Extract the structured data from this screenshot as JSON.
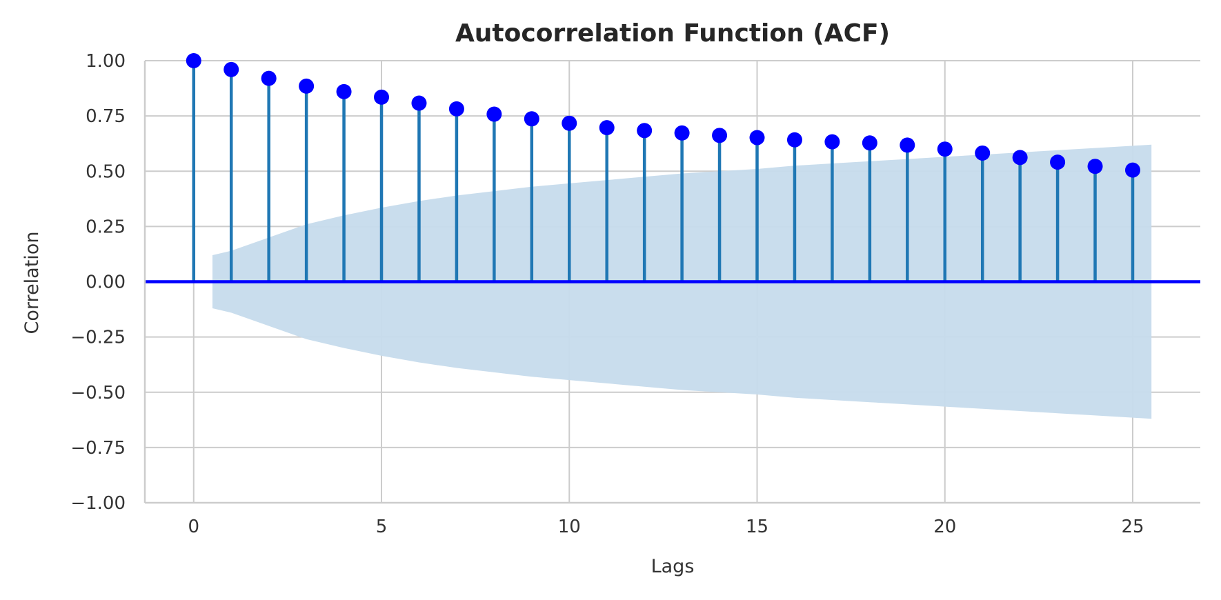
{
  "chart_data": {
    "type": "stem",
    "title": "Autocorrelation Function (ACF)",
    "xlabel": "Lags",
    "ylabel": "Correlation",
    "xlim": [
      -1.3,
      26.8
    ],
    "ylim": [
      -1.0,
      1.0
    ],
    "x_ticks": [
      0,
      5,
      10,
      15,
      20,
      25
    ],
    "y_ticks": [
      1.0,
      0.75,
      0.5,
      0.25,
      0.0,
      -0.25,
      -0.5,
      -0.75,
      -1.0
    ],
    "y_tick_labels": [
      "1.00",
      "0.75",
      "0.50",
      "0.25",
      "0.00",
      "−0.25",
      "−0.50",
      "−0.75",
      "−1.00"
    ],
    "grid": true,
    "lags": [
      0,
      1,
      2,
      3,
      4,
      5,
      6,
      7,
      8,
      9,
      10,
      11,
      12,
      13,
      14,
      15,
      16,
      17,
      18,
      19,
      20,
      21,
      22,
      23,
      24,
      25
    ],
    "acf": [
      1.0,
      0.96,
      0.92,
      0.885,
      0.86,
      0.835,
      0.808,
      0.782,
      0.758,
      0.737,
      0.717,
      0.697,
      0.684,
      0.673,
      0.662,
      0.652,
      0.642,
      0.633,
      0.628,
      0.618,
      0.6,
      0.582,
      0.562,
      0.541,
      0.522,
      0.505
    ],
    "confidence_band": {
      "x": [
        0.5,
        1,
        2,
        3,
        4,
        5,
        6,
        7,
        8,
        9,
        10,
        11,
        12,
        13,
        14,
        15,
        16,
        17,
        18,
        19,
        20,
        21,
        22,
        23,
        24,
        25,
        25.5
      ],
      "upper": [
        0.12,
        0.14,
        0.2,
        0.26,
        0.3,
        0.335,
        0.365,
        0.39,
        0.41,
        0.43,
        0.445,
        0.46,
        0.475,
        0.49,
        0.5,
        0.51,
        0.525,
        0.535,
        0.545,
        0.555,
        0.565,
        0.575,
        0.585,
        0.595,
        0.605,
        0.615,
        0.62
      ]
    },
    "colors": {
      "stem": "#1f77b4",
      "marker": "#0000ff",
      "zero_line": "#0000ff",
      "band": "#c6dbec"
    }
  }
}
